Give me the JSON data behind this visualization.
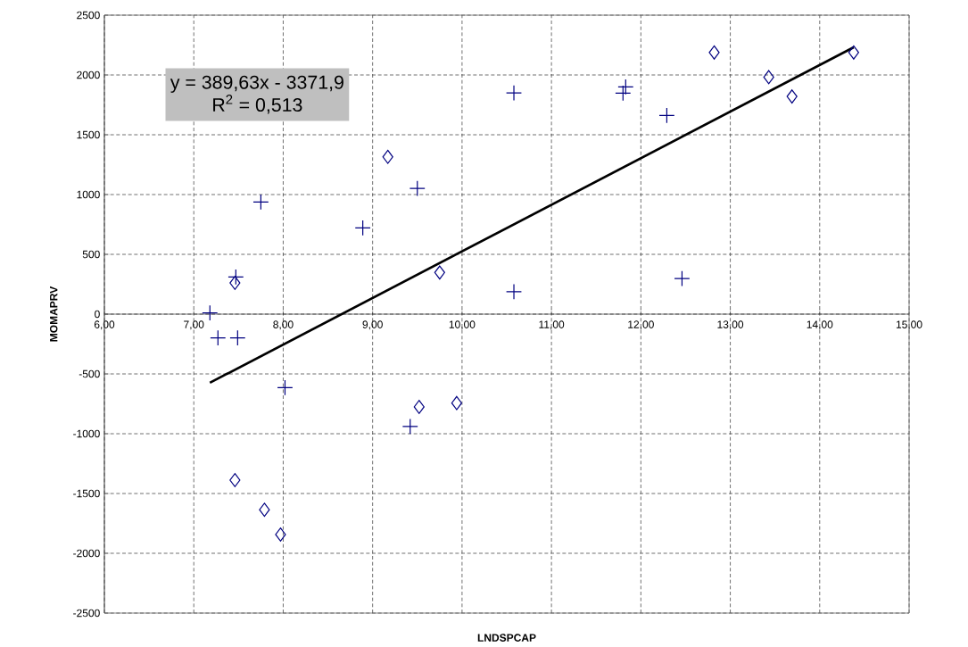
{
  "chart_data": {
    "type": "scatter",
    "xlabel": "LNDSPCAP",
    "ylabel": "MOMAPRV",
    "xlim": [
      6,
      15
    ],
    "ylim": [
      -2500,
      2500
    ],
    "xticks": [
      {
        "value": 6,
        "label": "6,00"
      },
      {
        "value": 7,
        "label": "7,00"
      },
      {
        "value": 8,
        "label": "8,00"
      },
      {
        "value": 9,
        "label": "9,00"
      },
      {
        "value": 10,
        "label": "10,00"
      },
      {
        "value": 11,
        "label": "11,00"
      },
      {
        "value": 12,
        "label": "12,00"
      },
      {
        "value": 13,
        "label": "13,00"
      },
      {
        "value": 14,
        "label": "14,00"
      },
      {
        "value": 15,
        "label": "15,00"
      }
    ],
    "yticks": [
      -2500,
      -2000,
      -1500,
      -1000,
      -500,
      0,
      500,
      1000,
      1500,
      2000,
      2500
    ],
    "grid": true,
    "annotations": [
      "y = 389,63x - 3371,9",
      "R$^{2}$ = 0,513"
    ],
    "series": [
      {
        "marker": "diamond",
        "color": "#000080",
        "x": [
          9.17,
          7.46,
          9.75,
          12.82,
          13.43,
          13.69,
          14.38,
          9.52,
          9.94,
          7.46,
          7.79,
          7.97
        ],
        "values": [
          1315,
          261,
          348,
          2188,
          1982,
          1820,
          2188,
          -776,
          -744,
          -1388,
          -1636,
          -1843
        ]
      },
      {
        "marker": "cross",
        "color": "#000080",
        "x": [
          9.5,
          7.75,
          8.89,
          7.47,
          7.18,
          10.58,
          11.8,
          11.83,
          12.29,
          10.58,
          12.46,
          7.27,
          7.49,
          8.02,
          9.42
        ],
        "values": [
          1052,
          938,
          721,
          311,
          10,
          1850,
          1848,
          1900,
          1661,
          187,
          298,
          -199,
          -199,
          -614,
          -940
        ]
      },
      {
        "type": "line",
        "marker": "none",
        "color": "#000000",
        "x": [
          7.18,
          14.38
        ],
        "values": [
          -574,
          2231
        ]
      }
    ]
  }
}
